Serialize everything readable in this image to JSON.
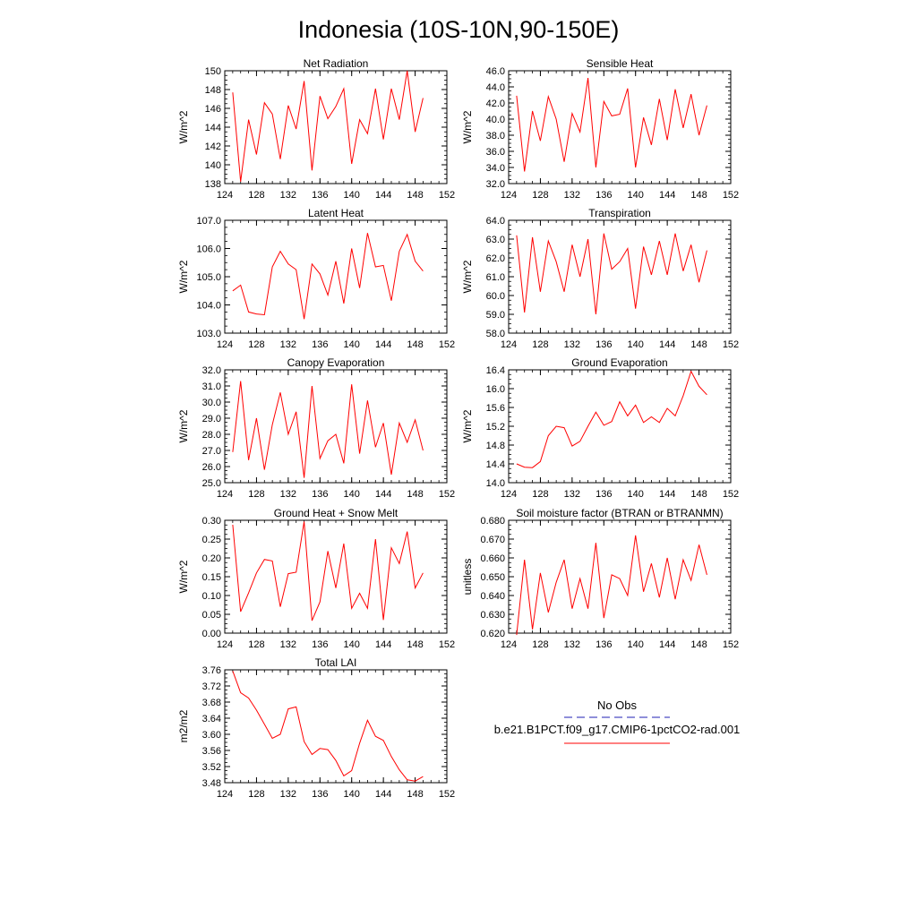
{
  "figure": {
    "title": "Indonesia (10S-10N,90-150E)"
  },
  "colors": {
    "model_line": "#ff0000",
    "obs_line": "#1f1fb4",
    "axis": "#000000"
  },
  "legend": {
    "obs_label": "No Obs",
    "model_label": "b.e21.B1PCT.f09_g17.CMIP6-1pctCO2-rad.001"
  },
  "chart_data": [
    {
      "type": "line",
      "title": "Net Radiation",
      "ylabel": "W/m^2",
      "xlim": [
        124,
        152
      ],
      "ylim": [
        138,
        150
      ],
      "xticks": [
        "124",
        "128",
        "132",
        "136",
        "140",
        "144",
        "148",
        "152"
      ],
      "yticks": [
        "138",
        "140",
        "142",
        "144",
        "146",
        "148",
        "150"
      ],
      "series": [
        {
          "x": [
            125,
            126,
            127,
            128,
            129,
            130,
            131,
            132,
            133,
            134,
            135,
            136,
            137,
            138,
            139,
            140,
            141,
            142,
            143,
            144,
            145,
            146,
            147,
            148,
            149
          ],
          "values": [
            147.7,
            138.2,
            144.8,
            141.1,
            146.6,
            145.4,
            140.6,
            146.3,
            143.8,
            148.9,
            139.4,
            147.3,
            144.9,
            146.2,
            148.1,
            140.1,
            144.8,
            143.3,
            148.1,
            142.7,
            148.1,
            144.8,
            150.0,
            143.5,
            147.1
          ]
        }
      ]
    },
    {
      "type": "line",
      "title": "Sensible Heat",
      "ylabel": "W/m^2",
      "xlim": [
        124,
        152
      ],
      "ylim": [
        32,
        46
      ],
      "xticks": [
        "124",
        "128",
        "132",
        "136",
        "140",
        "144",
        "148",
        "152"
      ],
      "yticks": [
        "32.0",
        "34.0",
        "36.0",
        "38.0",
        "40.0",
        "42.0",
        "44.0",
        "46.0"
      ],
      "series": [
        {
          "x": [
            125,
            126,
            127,
            128,
            129,
            130,
            131,
            132,
            133,
            134,
            135,
            136,
            137,
            138,
            139,
            140,
            141,
            142,
            143,
            144,
            145,
            146,
            147,
            148,
            149
          ],
          "values": [
            42.9,
            33.5,
            41.0,
            37.3,
            42.8,
            40.0,
            34.7,
            40.7,
            38.4,
            45.1,
            34.0,
            42.2,
            40.4,
            40.6,
            43.8,
            34.0,
            40.2,
            36.8,
            42.5,
            37.4,
            43.7,
            38.9,
            43.1,
            38.0,
            41.7
          ]
        }
      ]
    },
    {
      "type": "line",
      "title": "Latent Heat",
      "ylabel": "W/m^2",
      "xlim": [
        124,
        152
      ],
      "ylim": [
        103,
        107
      ],
      "xticks": [
        "124",
        "128",
        "132",
        "136",
        "140",
        "144",
        "148",
        "152"
      ],
      "yticks": [
        "103.0",
        "104.0",
        "105.0",
        "106.0",
        "107.0"
      ],
      "series": [
        {
          "x": [
            125,
            126,
            127,
            128,
            129,
            130,
            131,
            132,
            133,
            134,
            135,
            136,
            137,
            138,
            139,
            140,
            141,
            142,
            143,
            144,
            145,
            146,
            147,
            148,
            149
          ],
          "values": [
            104.5,
            104.7,
            103.75,
            103.68,
            103.65,
            105.35,
            105.9,
            105.45,
            105.25,
            103.5,
            105.45,
            105.1,
            104.35,
            105.55,
            104.05,
            106.0,
            104.6,
            106.55,
            105.35,
            105.4,
            104.15,
            105.9,
            106.5,
            105.55,
            105.2
          ]
        }
      ]
    },
    {
      "type": "line",
      "title": "Transpiration",
      "ylabel": "W/m^2",
      "xlim": [
        124,
        152
      ],
      "ylim": [
        58,
        64
      ],
      "xticks": [
        "124",
        "128",
        "132",
        "136",
        "140",
        "144",
        "148",
        "152"
      ],
      "yticks": [
        "58.0",
        "59.0",
        "60.0",
        "61.0",
        "62.0",
        "63.0",
        "64.0"
      ],
      "series": [
        {
          "x": [
            125,
            126,
            127,
            128,
            129,
            130,
            131,
            132,
            133,
            134,
            135,
            136,
            137,
            138,
            139,
            140,
            141,
            142,
            143,
            144,
            145,
            146,
            147,
            148,
            149
          ],
          "values": [
            63.2,
            59.1,
            63.1,
            60.2,
            62.9,
            61.8,
            60.2,
            62.7,
            61.0,
            63.0,
            59.0,
            63.3,
            61.4,
            61.8,
            62.5,
            59.3,
            62.6,
            61.1,
            62.9,
            61.1,
            63.3,
            61.3,
            62.7,
            60.7,
            62.4
          ]
        }
      ]
    },
    {
      "type": "line",
      "title": "Canopy Evaporation",
      "ylabel": "W/m^2",
      "xlim": [
        124,
        152
      ],
      "ylim": [
        25,
        32
      ],
      "xticks": [
        "124",
        "128",
        "132",
        "136",
        "140",
        "144",
        "148",
        "152"
      ],
      "yticks": [
        "25.0",
        "26.0",
        "27.0",
        "28.0",
        "29.0",
        "30.0",
        "31.0",
        "32.0"
      ],
      "series": [
        {
          "x": [
            125,
            126,
            127,
            128,
            129,
            130,
            131,
            132,
            133,
            134,
            135,
            136,
            137,
            138,
            139,
            140,
            141,
            142,
            143,
            144,
            145,
            146,
            147,
            148,
            149
          ],
          "values": [
            26.9,
            31.3,
            26.4,
            29.0,
            25.8,
            28.6,
            30.6,
            28.0,
            29.4,
            25.3,
            31.0,
            26.5,
            27.6,
            28.0,
            26.2,
            31.1,
            26.8,
            30.1,
            27.2,
            28.7,
            25.5,
            28.7,
            27.5,
            28.9,
            27.0
          ]
        }
      ]
    },
    {
      "type": "line",
      "title": "Ground Evaporation",
      "ylabel": "W/m^2",
      "xlim": [
        124,
        152
      ],
      "ylim": [
        14.0,
        16.4
      ],
      "xticks": [
        "124",
        "128",
        "132",
        "136",
        "140",
        "144",
        "148",
        "152"
      ],
      "yticks": [
        "14.0",
        "14.4",
        "14.8",
        "15.2",
        "15.6",
        "16.0",
        "16.4"
      ],
      "series": [
        {
          "x": [
            125,
            126,
            127,
            128,
            129,
            130,
            131,
            132,
            133,
            134,
            135,
            136,
            137,
            138,
            139,
            140,
            141,
            142,
            143,
            144,
            145,
            146,
            147,
            148,
            149
          ],
          "values": [
            14.4,
            14.33,
            14.32,
            14.45,
            15.0,
            15.2,
            15.17,
            14.78,
            14.88,
            15.2,
            15.5,
            15.22,
            15.3,
            15.72,
            15.42,
            15.65,
            15.28,
            15.4,
            15.28,
            15.58,
            15.42,
            15.85,
            16.37,
            16.05,
            15.87
          ]
        }
      ]
    },
    {
      "type": "line",
      "title": "Ground Heat + Snow Melt",
      "ylabel": "W/m^2",
      "xlim": [
        124,
        152
      ],
      "ylim": [
        0.0,
        0.3
      ],
      "xticks": [
        "124",
        "128",
        "132",
        "136",
        "140",
        "144",
        "148",
        "152"
      ],
      "yticks": [
        "0.00",
        "0.05",
        "0.10",
        "0.15",
        "0.20",
        "0.25",
        "0.30"
      ],
      "series": [
        {
          "x": [
            125,
            126,
            127,
            128,
            129,
            130,
            131,
            132,
            133,
            134,
            135,
            136,
            137,
            138,
            139,
            140,
            141,
            142,
            143,
            144,
            145,
            146,
            147,
            148,
            149
          ],
          "values": [
            0.288,
            0.057,
            0.107,
            0.16,
            0.196,
            0.192,
            0.07,
            0.158,
            0.162,
            0.297,
            0.033,
            0.083,
            0.218,
            0.12,
            0.238,
            0.066,
            0.106,
            0.066,
            0.25,
            0.035,
            0.227,
            0.185,
            0.27,
            0.12,
            0.16
          ]
        }
      ]
    },
    {
      "type": "line",
      "title": "Soil moisture factor (BTRAN or BTRANMN)",
      "ylabel": "unitless",
      "xlim": [
        124,
        152
      ],
      "ylim": [
        0.62,
        0.68
      ],
      "xticks": [
        "124",
        "128",
        "132",
        "136",
        "140",
        "144",
        "148",
        "152"
      ],
      "yticks": [
        "0.620",
        "0.630",
        "0.640",
        "0.650",
        "0.660",
        "0.670",
        "0.680"
      ],
      "series": [
        {
          "x": [
            125,
            126,
            127,
            128,
            129,
            130,
            131,
            132,
            133,
            134,
            135,
            136,
            137,
            138,
            139,
            140,
            141,
            142,
            143,
            144,
            145,
            146,
            147,
            148,
            149
          ],
          "values": [
            0.619,
            0.659,
            0.622,
            0.652,
            0.631,
            0.647,
            0.659,
            0.633,
            0.649,
            0.633,
            0.668,
            0.628,
            0.651,
            0.649,
            0.64,
            0.672,
            0.642,
            0.657,
            0.639,
            0.66,
            0.638,
            0.659,
            0.648,
            0.667,
            0.651
          ]
        }
      ]
    },
    {
      "type": "line",
      "title": "Total LAI",
      "ylabel": "m2/m2",
      "xlim": [
        124,
        152
      ],
      "ylim": [
        3.48,
        3.76
      ],
      "xticks": [
        "124",
        "128",
        "132",
        "136",
        "140",
        "144",
        "148",
        "152"
      ],
      "yticks": [
        "3.48",
        "3.52",
        "3.56",
        "3.60",
        "3.64",
        "3.68",
        "3.72",
        "3.76"
      ],
      "series": [
        {
          "x": [
            125,
            126,
            127,
            128,
            129,
            130,
            131,
            132,
            133,
            134,
            135,
            136,
            137,
            138,
            139,
            140,
            141,
            142,
            143,
            144,
            145,
            146,
            147,
            148,
            149
          ],
          "values": [
            3.757,
            3.703,
            3.69,
            3.66,
            3.625,
            3.59,
            3.6,
            3.663,
            3.668,
            3.582,
            3.55,
            3.565,
            3.562,
            3.535,
            3.497,
            3.51,
            3.578,
            3.635,
            3.595,
            3.585,
            3.545,
            3.512,
            3.487,
            3.484,
            3.495
          ]
        }
      ]
    }
  ]
}
